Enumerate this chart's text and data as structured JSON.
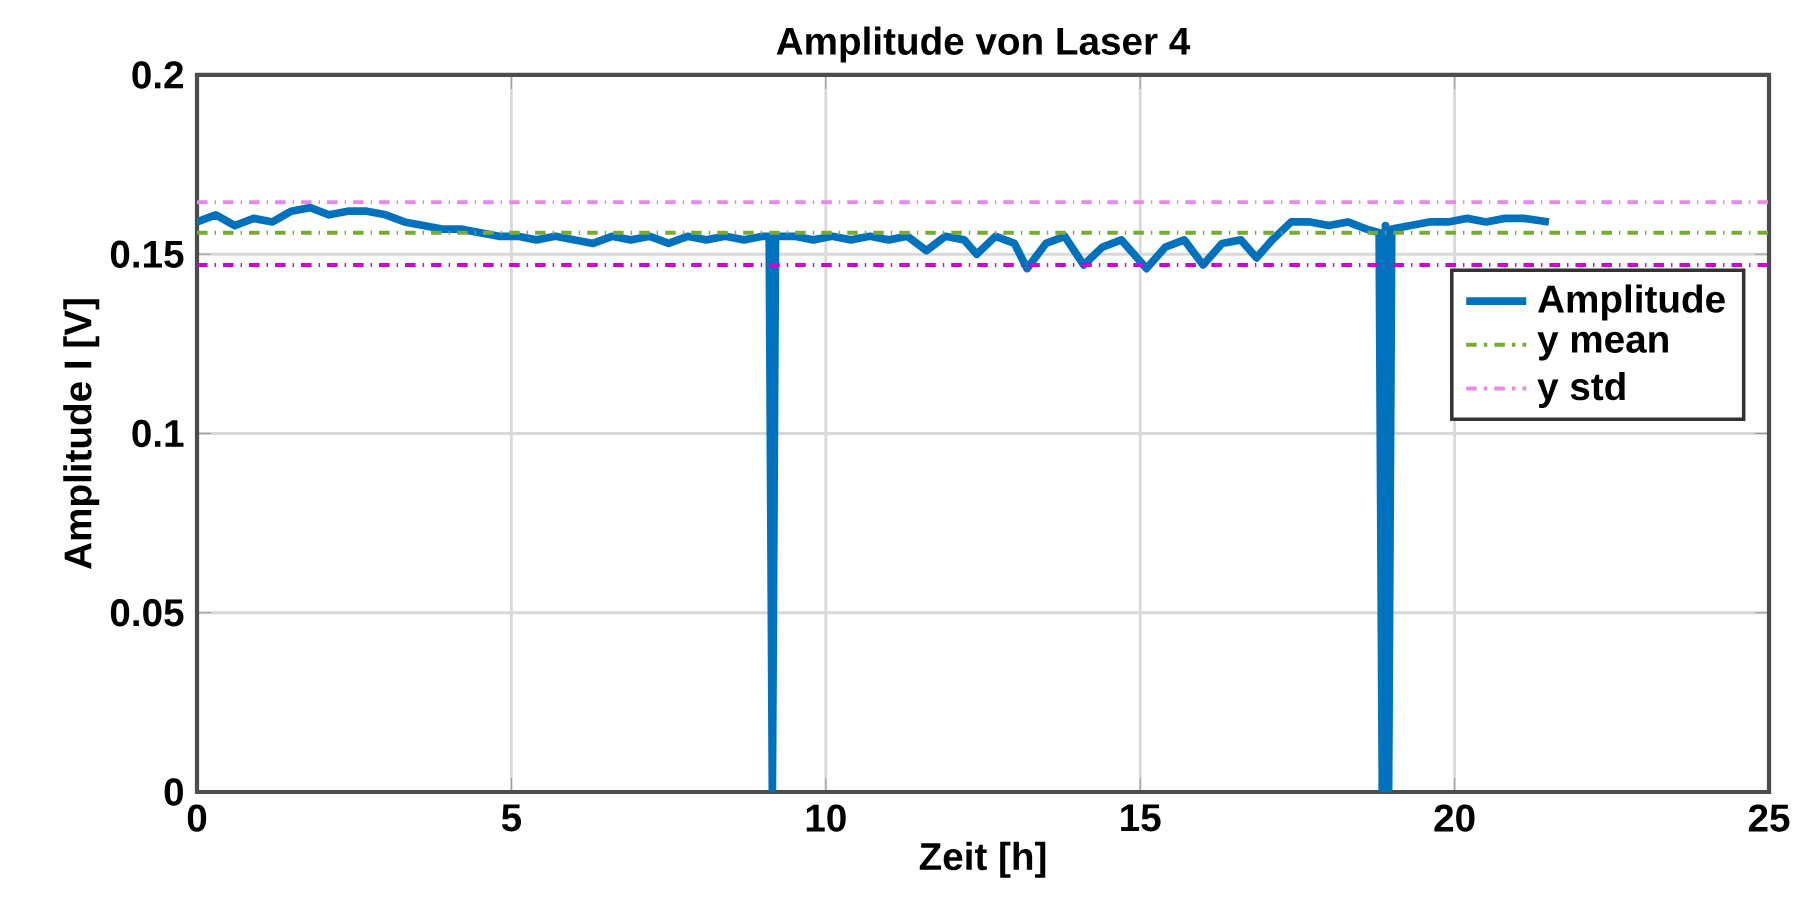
{
  "chart_data": {
    "type": "line",
    "title": "Amplitude von Laser 4",
    "xlabel": "Zeit [h]",
    "ylabel": "Amplitude I [V]",
    "xlim": [
      0,
      25
    ],
    "xticks": [
      0,
      5,
      10,
      15,
      20,
      25
    ],
    "ylim": [
      0,
      0.2
    ],
    "yticks": [
      0,
      0.05,
      0.1,
      0.15,
      0.2
    ],
    "grid": true,
    "legend": "right",
    "line_style": "solid",
    "marker": "none",
    "series": [
      {
        "name": "Amplitude",
        "color": "#0072bd",
        "x": [
          0,
          0.3,
          0.6,
          0.9,
          1.2,
          1.5,
          1.8,
          2.1,
          2.4,
          2.7,
          3.0,
          3.3,
          3.6,
          3.9,
          4.2,
          4.5,
          4.8,
          5.1,
          5.4,
          5.7,
          6.0,
          6.3,
          6.6,
          6.9,
          7.2,
          7.5,
          7.8,
          8.1,
          8.4,
          8.7,
          9.0,
          9.1,
          9.15,
          9.2,
          9.5,
          9.8,
          10.1,
          10.4,
          10.7,
          11.0,
          11.3,
          11.6,
          11.9,
          12.2,
          12.4,
          12.7,
          13.0,
          13.2,
          13.5,
          13.8,
          14.1,
          14.4,
          14.7,
          15.1,
          15.4,
          15.7,
          16.0,
          16.3,
          16.6,
          16.85,
          17.1,
          17.4,
          17.7,
          18.0,
          18.3,
          18.6,
          18.8,
          18.85,
          18.9,
          18.95,
          19.0,
          19.3,
          19.6,
          19.9,
          20.2,
          20.5,
          20.8,
          21.1,
          21.5
        ],
        "values": [
          0.159,
          0.161,
          0.158,
          0.16,
          0.159,
          0.162,
          0.163,
          0.161,
          0.162,
          0.162,
          0.161,
          0.159,
          0.158,
          0.157,
          0.157,
          0.156,
          0.155,
          0.155,
          0.154,
          0.155,
          0.154,
          0.153,
          0.155,
          0.154,
          0.155,
          0.153,
          0.155,
          0.154,
          0.155,
          0.154,
          0.155,
          0.155,
          0,
          0.155,
          0.155,
          0.154,
          0.155,
          0.154,
          0.155,
          0.154,
          0.155,
          0.151,
          0.155,
          0.154,
          0.15,
          0.155,
          0.153,
          0.146,
          0.153,
          0.155,
          0.147,
          0.152,
          0.154,
          0.146,
          0.152,
          0.154,
          0.147,
          0.153,
          0.154,
          0.149,
          0.154,
          0.159,
          0.159,
          0.158,
          0.159,
          0.157,
          0.156,
          0,
          0.158,
          0,
          0.157,
          0.158,
          0.159,
          0.159,
          0.16,
          0.159,
          0.16,
          0.16,
          0.159
        ]
      }
    ],
    "ref_lines": [
      {
        "axis": "y",
        "value": 0.156,
        "label": "y mean",
        "color": "#77ac30",
        "line_style": "dashdot"
      },
      {
        "axis": "y",
        "value": 0.1645,
        "label": "y std",
        "color": "#e68ae6",
        "line_style": "dashdot"
      },
      {
        "axis": "y",
        "value": 0.147,
        "label": null,
        "color": "#d400d4",
        "line_style": "dashdot"
      }
    ]
  }
}
